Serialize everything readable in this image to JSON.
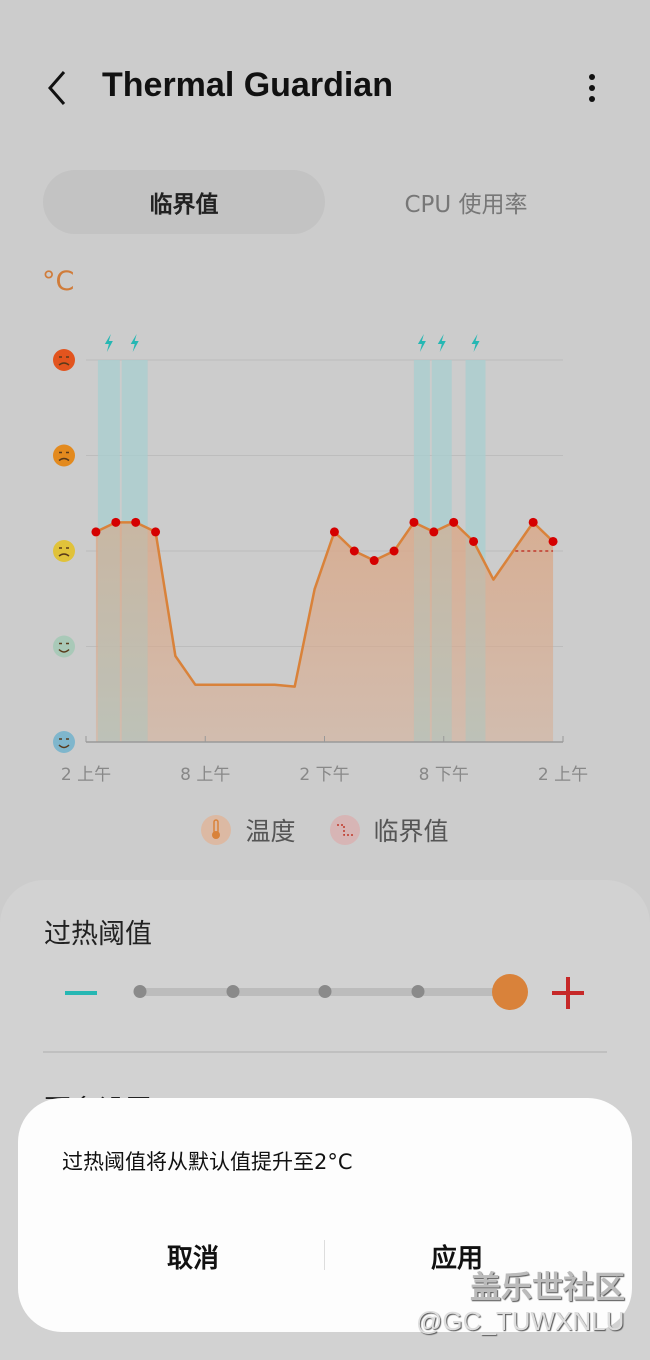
{
  "header": {
    "title": "Thermal Guardian",
    "back_icon": "chevron-left-icon",
    "menu_icon": "more-vertical-icon"
  },
  "tabs": [
    {
      "label": "临界值",
      "selected": true
    },
    {
      "label": "CPU 使用率",
      "selected": false
    }
  ],
  "chart_unit": "°C",
  "colors": {
    "temperature": "#d9823a",
    "fill": "#d9a98a",
    "point": "#d50000",
    "threshold": "#c0392b",
    "band": "#a9cfd0",
    "lightning": "#26b7b3",
    "slider_thumb": "#d9823a",
    "minus": "#26b7b3",
    "plus": "#c62828"
  },
  "chart_data": {
    "type": "area",
    "x_axis": {
      "start": "02:00",
      "end": "02:00 (+1 day)",
      "tick_labels": [
        "2 上午",
        "8 上午",
        "2 下午",
        "8 下午",
        "2 上午"
      ]
    },
    "y_axis": {
      "levels": [
        "very-cold-face",
        "cool-face",
        "neutral-face",
        "hot-face",
        "overheated-face"
      ],
      "range": [
        0,
        4
      ],
      "grid": true
    },
    "series": [
      {
        "name": "温度",
        "points": [
          {
            "t": "02:30",
            "v": 2.2,
            "marker": true
          },
          {
            "t": "03:30",
            "v": 2.3,
            "marker": true
          },
          {
            "t": "04:30",
            "v": 2.3,
            "marker": true
          },
          {
            "t": "05:30",
            "v": 2.2,
            "marker": true
          },
          {
            "t": "06:30",
            "v": 0.9,
            "marker": false
          },
          {
            "t": "07:30",
            "v": 0.6,
            "marker": false
          },
          {
            "t": "08:30",
            "v": 0.6,
            "marker": false
          },
          {
            "t": "09:30",
            "v": 0.6,
            "marker": false
          },
          {
            "t": "10:30",
            "v": 0.6,
            "marker": false
          },
          {
            "t": "11:30",
            "v": 0.6,
            "marker": false
          },
          {
            "t": "12:30",
            "v": 0.58,
            "marker": false
          },
          {
            "t": "13:30",
            "v": 1.6,
            "marker": false
          },
          {
            "t": "14:30",
            "v": 2.2,
            "marker": true
          },
          {
            "t": "15:30",
            "v": 2.0,
            "marker": true
          },
          {
            "t": "16:30",
            "v": 1.9,
            "marker": true
          },
          {
            "t": "17:30",
            "v": 2.0,
            "marker": true
          },
          {
            "t": "18:30",
            "v": 2.3,
            "marker": true
          },
          {
            "t": "19:30",
            "v": 2.2,
            "marker": true
          },
          {
            "t": "20:30",
            "v": 2.3,
            "marker": true
          },
          {
            "t": "21:30",
            "v": 2.1,
            "marker": true
          },
          {
            "t": "22:30",
            "v": 1.7,
            "marker": false
          },
          {
            "t": "00:30",
            "v": 2.3,
            "marker": true
          },
          {
            "t": "01:30",
            "v": 2.1,
            "marker": true
          }
        ]
      }
    ],
    "threshold": {
      "name": "临界值",
      "from": "23:36",
      "to": "01:30",
      "v": 2.0
    },
    "highlight_bands": [
      {
        "from": "02:36",
        "to": "03:42",
        "icon": "lightning-icon"
      },
      {
        "from": "03:48",
        "to": "05:06",
        "icon": "lightning-icon"
      },
      {
        "from": "18:30",
        "to": "19:18",
        "icon": "lightning-icon"
      },
      {
        "from": "19:24",
        "to": "20:24",
        "icon": "lightning-icon"
      },
      {
        "from": "21:06",
        "to": "22:06",
        "icon": "lightning-icon"
      }
    ]
  },
  "legend": [
    {
      "label": "温度",
      "icon": "thermometer-icon"
    },
    {
      "label": "临界值",
      "icon": "threshold-step-icon"
    }
  ],
  "overheat": {
    "title": "过热阈值",
    "levels": 5,
    "selected_index": 4
  },
  "more_settings_title": "更多设置",
  "dialog": {
    "message": "过热阈值将从默认值提升至2°C",
    "cancel": "取消",
    "apply": "应用"
  },
  "watermark": {
    "line1": "盖乐世社区",
    "line2": "@GC_TUWXNLU"
  }
}
